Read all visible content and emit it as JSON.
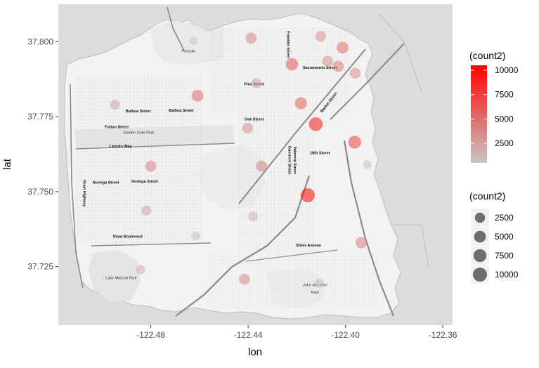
{
  "chart_data": {
    "type": "scatter",
    "base_layer": "map",
    "xlabel": "lon",
    "ylabel": "lat",
    "xlim": [
      -122.518,
      -122.356
    ],
    "ylim": [
      37.7055,
      37.8125
    ],
    "x_ticks": [
      -122.48,
      -122.44,
      -122.4,
      -122.36
    ],
    "x_tick_labels": [
      "-122.48",
      "-122.44",
      "-122.40",
      "-122.36"
    ],
    "y_ticks": [
      37.725,
      37.75,
      37.775,
      37.8
    ],
    "y_tick_labels": [
      "37.725",
      "37.750",
      "37.775",
      "37.800"
    ],
    "grid": true,
    "colors": {
      "panel_background": "#dcdcdc",
      "land": "#f2f2f2",
      "streets": "#9a9a9a",
      "low": "#c8c8c8",
      "high": "#ff0000"
    },
    "points": [
      {
        "lon": -122.4388,
        "lat": 37.8012,
        "count2": 3800
      },
      {
        "lon": -122.4102,
        "lat": 37.8018,
        "count2": 3200
      },
      {
        "lon": -122.4012,
        "lat": 37.798,
        "count2": 5000
      },
      {
        "lon": -122.422,
        "lat": 37.7925,
        "count2": 6200
      },
      {
        "lon": -122.4073,
        "lat": 37.7935,
        "count2": 3300
      },
      {
        "lon": -122.403,
        "lat": 37.7918,
        "count2": 4100
      },
      {
        "lon": -122.396,
        "lat": 37.7895,
        "count2": 3500
      },
      {
        "lon": -122.4366,
        "lat": 37.7862,
        "count2": 2500
      },
      {
        "lon": -122.4608,
        "lat": 37.782,
        "count2": 5200
      },
      {
        "lon": -122.4183,
        "lat": 37.7795,
        "count2": 5600
      },
      {
        "lon": -122.4947,
        "lat": 37.779,
        "count2": 2300
      },
      {
        "lon": -122.4402,
        "lat": 37.7712,
        "count2": 3300
      },
      {
        "lon": -122.4122,
        "lat": 37.7725,
        "count2": 9200
      },
      {
        "lon": -122.3962,
        "lat": 37.7665,
        "count2": 7200
      },
      {
        "lon": -122.48,
        "lat": 37.7585,
        "count2": 4000
      },
      {
        "lon": -122.4345,
        "lat": 37.7585,
        "count2": 4000
      },
      {
        "lon": -122.391,
        "lat": 37.759,
        "count2": 900
      },
      {
        "lon": -122.4155,
        "lat": 37.7488,
        "count2": 10200
      },
      {
        "lon": -122.4818,
        "lat": 37.7437,
        "count2": 2300
      },
      {
        "lon": -122.438,
        "lat": 37.7418,
        "count2": 1800
      },
      {
        "lon": -122.4615,
        "lat": 37.7352,
        "count2": 1000
      },
      {
        "lon": -122.3935,
        "lat": 37.733,
        "count2": 4300
      },
      {
        "lon": -122.4842,
        "lat": 37.724,
        "count2": 1600
      },
      {
        "lon": -122.4415,
        "lat": 37.7208,
        "count2": 3500
      },
      {
        "lon": -122.4108,
        "lat": 37.7195,
        "count2": 1100
      },
      {
        "lon": -122.4625,
        "lat": 37.8003,
        "count2": 500
      }
    ],
    "legend_color": {
      "title": "(count2)",
      "position": "right",
      "range": [
        500,
        10500
      ],
      "breaks": [
        2500,
        5000,
        7500,
        10000
      ],
      "labels": [
        "2500",
        "5000",
        "7500",
        "10000"
      ]
    },
    "legend_size": {
      "title": "(count2)",
      "position": "right",
      "breaks": [
        2500,
        5000,
        7500,
        10000
      ],
      "labels": [
        "2500",
        "5000",
        "7500",
        "10000"
      ]
    },
    "map_labels": [
      {
        "text": "Presidio",
        "lon": -122.4645,
        "lat": 37.7965,
        "kind": "park"
      },
      {
        "text": "Pine Street",
        "lon": -122.4375,
        "lat": 37.7855,
        "kind": "street"
      },
      {
        "text": "Sacramento Street",
        "lon": -122.4105,
        "lat": 37.791,
        "kind": "street"
      },
      {
        "text": "Balboa Street",
        "lon": -122.4852,
        "lat": 37.7765,
        "kind": "street"
      },
      {
        "text": "Balboa Street",
        "lon": -122.4675,
        "lat": 37.7767,
        "kind": "street"
      },
      {
        "text": "Oak Street",
        "lon": -122.4375,
        "lat": 37.7737,
        "kind": "street"
      },
      {
        "text": "Fulton Street",
        "lon": -122.494,
        "lat": 37.7712,
        "kind": "street"
      },
      {
        "text": "Golden Gate Park",
        "lon": -122.485,
        "lat": 37.7693,
        "kind": "park"
      },
      {
        "text": "Lincoln Way",
        "lon": -122.4925,
        "lat": 37.7647,
        "kind": "street"
      },
      {
        "text": "18th Street",
        "lon": -122.4105,
        "lat": 37.7625,
        "kind": "street"
      },
      {
        "text": "Noriega Street",
        "lon": -122.4985,
        "lat": 37.7527,
        "kind": "street"
      },
      {
        "text": "Noriega Street",
        "lon": -122.4825,
        "lat": 37.753,
        "kind": "street"
      },
      {
        "text": "Great Highway",
        "lon": -122.5078,
        "lat": 37.7495,
        "kind": "street-vertical"
      },
      {
        "text": "Franklin Street",
        "lon": -122.424,
        "lat": 37.799,
        "kind": "street-vertical"
      },
      {
        "text": "Guerrero Street",
        "lon": -122.4235,
        "lat": 37.7605,
        "kind": "street-vertical"
      },
      {
        "text": "Valencia Street",
        "lon": -122.4213,
        "lat": 37.7605,
        "kind": "street-vertical"
      },
      {
        "text": "Market Street",
        "lon": -122.4065,
        "lat": 37.7795,
        "kind": "street-diagonal"
      },
      {
        "text": "Sloat Boulevard",
        "lon": -122.4895,
        "lat": 37.7347,
        "kind": "street"
      },
      {
        "text": "Silver Avenue",
        "lon": -122.4152,
        "lat": 37.7317,
        "kind": "street"
      },
      {
        "text": "Lake Merced Park",
        "lon": -122.4922,
        "lat": 37.7208,
        "kind": "park"
      },
      {
        "text": "John McLaren",
        "lon": -122.4125,
        "lat": 37.7185,
        "kind": "park"
      },
      {
        "text": "Park",
        "lon": -122.4125,
        "lat": 37.716,
        "kind": "park"
      }
    ]
  }
}
